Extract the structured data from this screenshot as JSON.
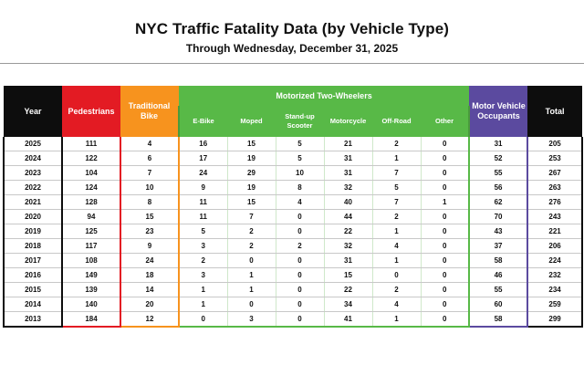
{
  "header": {
    "title": "NYC Traffic Fatality Data (by Vehicle Type)",
    "subtitle": "Through Wednesday, December 31, 2025"
  },
  "colors": {
    "year": "#0d0d0d",
    "pedestrians": "#e31b23",
    "traditional_bike": "#f7931e",
    "motorized_two_wheelers": "#58b947",
    "motor_vehicle_occupants": "#5b4a9f",
    "total": "#0d0d0d"
  },
  "table": {
    "headers": {
      "year": "Year",
      "pedestrians": "Pedestrians",
      "traditional_bike": "Traditional Bike",
      "motorized_group": "Motorized Two-Wheelers",
      "ebike": "E-Bike",
      "moped": "Moped",
      "scooter": "Stand-up Scooter",
      "motorcycle": "Motorcycle",
      "offroad": "Off-Road",
      "other": "Other",
      "mvo": "Motor Vehicle Occupants",
      "total": "Total"
    },
    "rows": [
      [
        "2025",
        "111",
        "4",
        "16",
        "15",
        "5",
        "21",
        "2",
        "0",
        "31",
        "205"
      ],
      [
        "2024",
        "122",
        "6",
        "17",
        "19",
        "5",
        "31",
        "1",
        "0",
        "52",
        "253"
      ],
      [
        "2023",
        "104",
        "7",
        "24",
        "29",
        "10",
        "31",
        "7",
        "0",
        "55",
        "267"
      ],
      [
        "2022",
        "124",
        "10",
        "9",
        "19",
        "8",
        "32",
        "5",
        "0",
        "56",
        "263"
      ],
      [
        "2021",
        "128",
        "8",
        "11",
        "15",
        "4",
        "40",
        "7",
        "1",
        "62",
        "276"
      ],
      [
        "2020",
        "94",
        "15",
        "11",
        "7",
        "0",
        "44",
        "2",
        "0",
        "70",
        "243"
      ],
      [
        "2019",
        "125",
        "23",
        "5",
        "2",
        "0",
        "22",
        "1",
        "0",
        "43",
        "221"
      ],
      [
        "2018",
        "117",
        "9",
        "3",
        "2",
        "2",
        "32",
        "4",
        "0",
        "37",
        "206"
      ],
      [
        "2017",
        "108",
        "24",
        "2",
        "0",
        "0",
        "31",
        "1",
        "0",
        "58",
        "224"
      ],
      [
        "2016",
        "149",
        "18",
        "3",
        "1",
        "0",
        "15",
        "0",
        "0",
        "46",
        "232"
      ],
      [
        "2015",
        "139",
        "14",
        "1",
        "1",
        "0",
        "22",
        "2",
        "0",
        "55",
        "234"
      ],
      [
        "2014",
        "140",
        "20",
        "1",
        "0",
        "0",
        "34",
        "4",
        "0",
        "60",
        "259"
      ],
      [
        "2013",
        "184",
        "12",
        "0",
        "3",
        "0",
        "41",
        "1",
        "0",
        "58",
        "299"
      ]
    ]
  }
}
